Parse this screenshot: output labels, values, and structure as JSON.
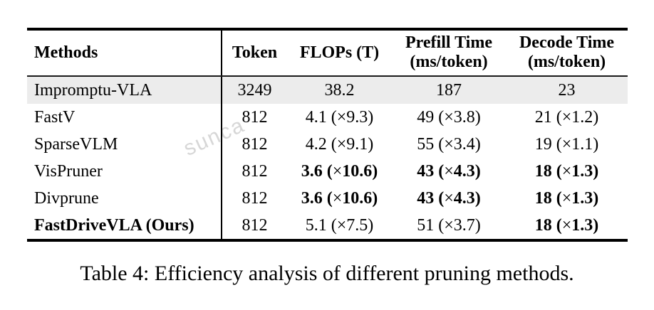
{
  "watermark": {
    "text": "sunca",
    "color": "#d7d7d7"
  },
  "table": {
    "columns": [
      {
        "lines": [
          "Methods"
        ],
        "align": "left"
      },
      {
        "lines": [
          "Token"
        ],
        "align": "center"
      },
      {
        "lines": [
          "FLOPs (T)"
        ],
        "align": "center"
      },
      {
        "lines": [
          "Prefill Time",
          "(ms/token)"
        ],
        "align": "center"
      },
      {
        "lines": [
          "Decode Time",
          "(ms/token)"
        ],
        "align": "center"
      }
    ],
    "rows": [
      {
        "method": "Impromptu-VLA",
        "method_bold": false,
        "highlight": true,
        "cells": [
          {
            "text": "3249",
            "bold": false
          },
          {
            "text": "38.2",
            "bold": false
          },
          {
            "text": "187",
            "bold": false
          },
          {
            "text": "23",
            "bold": false
          }
        ]
      },
      {
        "method": "FastV",
        "method_bold": false,
        "highlight": false,
        "cells": [
          {
            "text": "812",
            "bold": false
          },
          {
            "text": "4.1 (×9.3)",
            "bold": false
          },
          {
            "text": "49 (×3.8)",
            "bold": false
          },
          {
            "text": "21 (×1.2)",
            "bold": false
          }
        ]
      },
      {
        "method": "SparseVLM",
        "method_bold": false,
        "highlight": false,
        "cells": [
          {
            "text": "812",
            "bold": false
          },
          {
            "text": "4.2 (×9.1)",
            "bold": false
          },
          {
            "text": "55 (×3.4)",
            "bold": false
          },
          {
            "text": "19 (×1.1)",
            "bold": false
          }
        ]
      },
      {
        "method": "VisPruner",
        "method_bold": false,
        "highlight": false,
        "cells": [
          {
            "text": "812",
            "bold": false
          },
          {
            "text": "3.6 (×10.6)",
            "bold": true
          },
          {
            "text": "43 (×4.3)",
            "bold": true
          },
          {
            "text": "18 (×1.3)",
            "bold": true
          }
        ]
      },
      {
        "method": "Divprune",
        "method_bold": false,
        "highlight": false,
        "cells": [
          {
            "text": "812",
            "bold": false
          },
          {
            "text": "3.6 (×10.6)",
            "bold": true
          },
          {
            "text": "43 (×4.3)",
            "bold": true
          },
          {
            "text": "18 (×1.3)",
            "bold": true
          }
        ]
      },
      {
        "method": "FastDriveVLA (Ours)",
        "method_bold": true,
        "highlight": false,
        "cells": [
          {
            "text": "812",
            "bold": false
          },
          {
            "text": "5.1 (×7.5)",
            "bold": false
          },
          {
            "text": "51 (×3.7)",
            "bold": false
          },
          {
            "text": "18 (×1.3)",
            "bold": true
          }
        ]
      }
    ]
  },
  "caption": "Table 4: Efficiency analysis of different pruning methods.",
  "colors": {
    "highlight_row": "#ececec",
    "rule": "#000000",
    "watermark": "#d7d7d7"
  }
}
